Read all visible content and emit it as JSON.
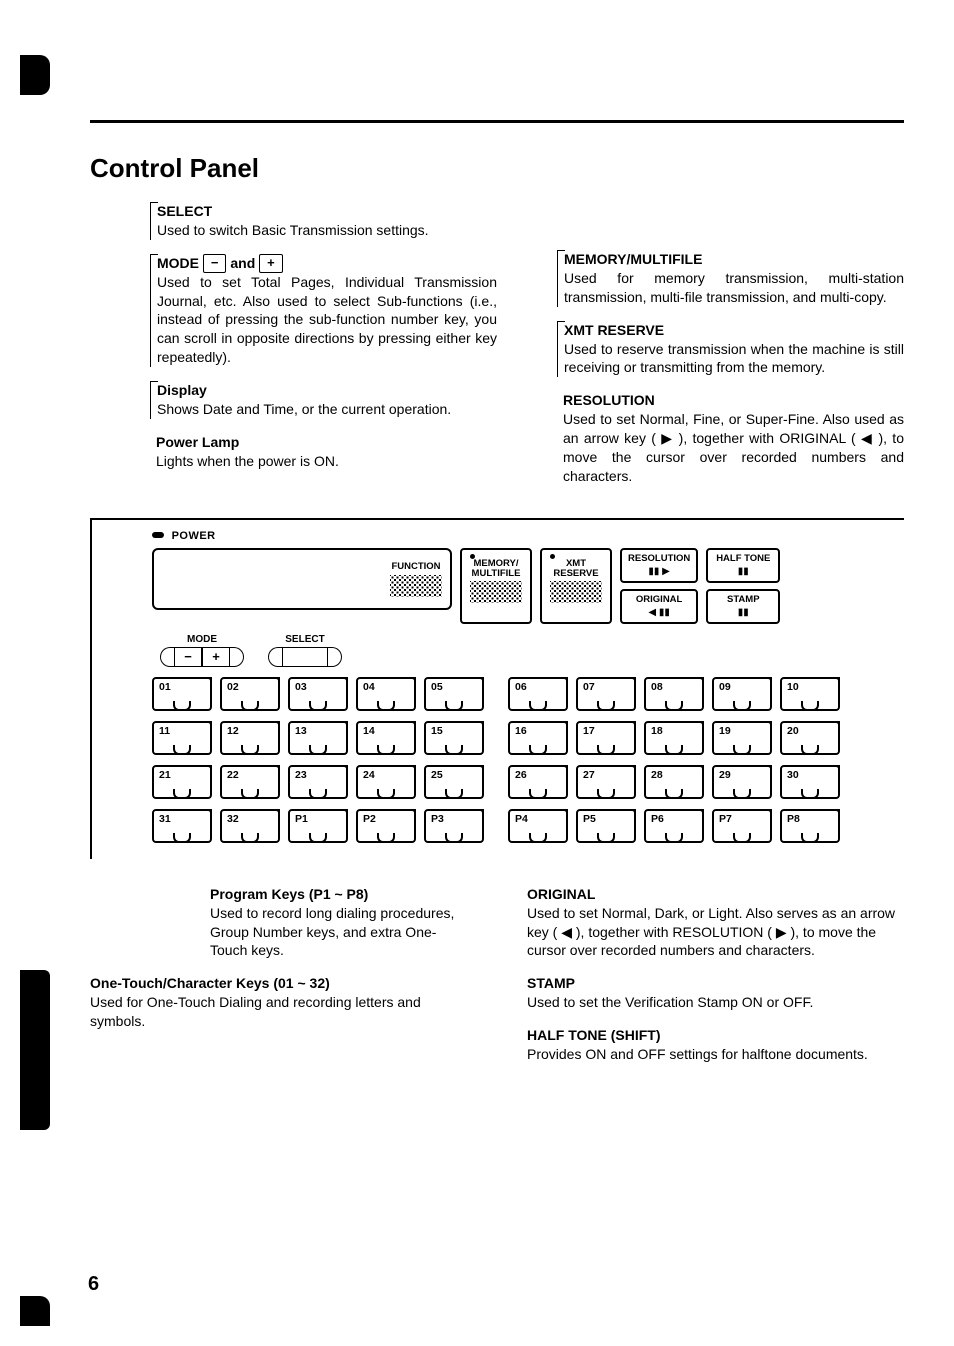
{
  "page": {
    "title": "Control Panel",
    "page_number": "6"
  },
  "left_callouts": {
    "select": {
      "title": "SELECT",
      "body": "Used to switch Basic Transmission settings."
    },
    "mode": {
      "title_pre": "MODE ",
      "btn_minus": "−",
      "mid": " and ",
      "btn_plus": "+",
      "body": "Used to set Total Pages, Individual Transmission Journal, etc. Also used to select Sub-functions (i.e., instead of pressing the sub-function number key, you can scroll in opposite directions by pressing either key repeatedly)."
    },
    "display": {
      "title": "Display",
      "body": "Shows Date and Time, or the current operation."
    },
    "power": {
      "title": "Power Lamp",
      "body": "Lights when the power is ON."
    }
  },
  "right_callouts": {
    "memory": {
      "title": "MEMORY/MULTIFILE",
      "body": "Used for memory transmission, multi-station transmission, multi-file transmission, and multi-copy."
    },
    "xmt": {
      "title": "XMT RESERVE",
      "body": "Used to reserve transmission when the machine is still receiving or transmitting from the memory."
    },
    "resolution": {
      "title": "RESOLUTION",
      "body": "Used to set Normal, Fine, or Super-Fine. Also used as an arrow key ( ▶ ), together with ORIGINAL ( ◀ ), to move the cursor over recorded numbers and characters."
    }
  },
  "panel": {
    "power_label": "POWER",
    "lcd_function": "FUNCTION",
    "memory_btn": "MEMORY/\nMULTIFILE",
    "xmt_btn": "XMT\nRESERVE",
    "resolution_btn": "RESOLUTION",
    "original_btn": "ORIGINAL",
    "halftone_btn": "HALF TONE",
    "stamp_btn": "STAMP",
    "mode_label": "MODE",
    "select_label": "SELECT",
    "minus": "−",
    "plus": "+",
    "onetouch_rows": [
      [
        [
          "01",
          "02",
          "03",
          "04",
          "05"
        ],
        [
          "06",
          "07",
          "08",
          "09",
          "10"
        ]
      ],
      [
        [
          "11",
          "12",
          "13",
          "14",
          "15"
        ],
        [
          "16",
          "17",
          "18",
          "19",
          "20"
        ]
      ],
      [
        [
          "21",
          "22",
          "23",
          "24",
          "25"
        ],
        [
          "26",
          "27",
          "28",
          "29",
          "30"
        ]
      ],
      [
        [
          "31",
          "32",
          "P1",
          "P2",
          "P3"
        ],
        [
          "P4",
          "P5",
          "P6",
          "P7",
          "P8"
        ]
      ]
    ]
  },
  "bottom_left": {
    "program": {
      "title": "Program Keys (P1 ~ P8)",
      "body": "Used to record long dialing procedures, Group Number keys, and extra One-Touch keys."
    },
    "onetouch": {
      "title": "One-Touch/Character Keys (01 ~ 32)",
      "body": "Used for One-Touch Dialing and recording letters and symbols."
    }
  },
  "bottom_right": {
    "original": {
      "title": "ORIGINAL",
      "body": "Used to set Normal, Dark, or Light. Also serves as an arrow key ( ◀ ), together with RESOLUTION ( ▶ ), to move the cursor over recorded numbers and characters."
    },
    "stamp": {
      "title": "STAMP",
      "body": "Used to set the Verification Stamp ON or OFF."
    },
    "halftone": {
      "title": "HALF TONE (SHIFT)",
      "body": "Provides ON and OFF settings for halftone documents."
    }
  }
}
